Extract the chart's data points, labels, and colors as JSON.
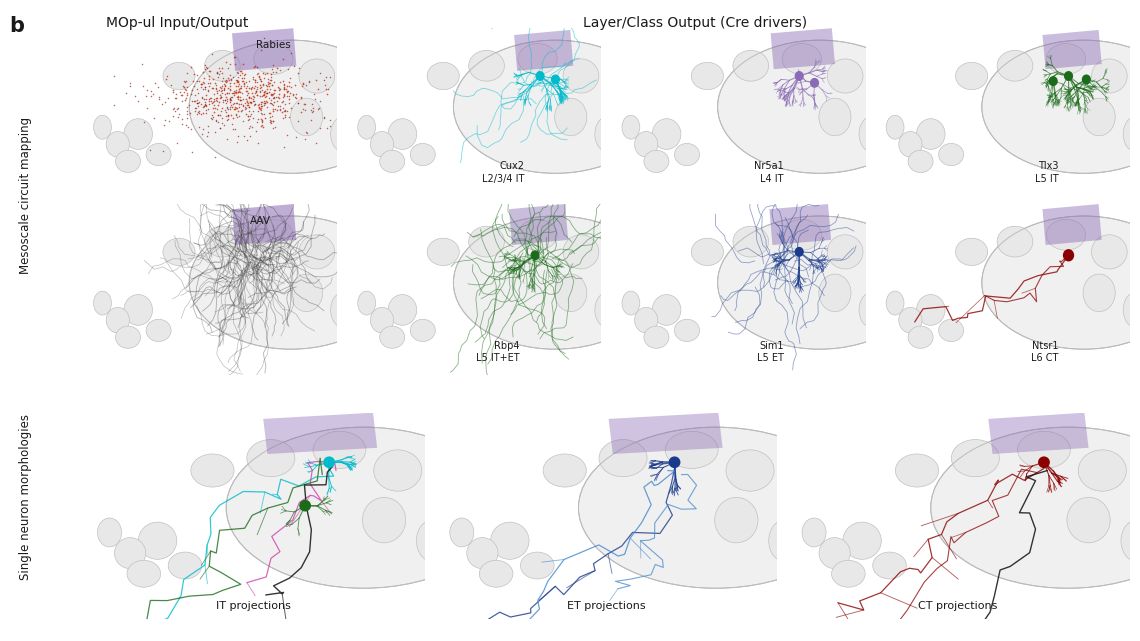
{
  "bg_color": "#ffffff",
  "fig_width": 11.4,
  "fig_height": 6.41,
  "title_b": "b",
  "col_header_left": "MOp-ul Input/Output",
  "col_header_right": "Layer/Class Output (Cre drivers)",
  "row_label_meso": "Mesoscale circuit mapping",
  "row_label_single": "Single neuron morphologies",
  "brain_fill": "#f0f0f0",
  "brain_edge": "#bbbbbb",
  "brain_lobe_fill": "#e8e8e8",
  "brain_lobe_edge": "#c0c0c0",
  "purple_color": "#8B6BB5",
  "rabies_dark": "#8B0000",
  "rabies_light": "#CC3300",
  "aav_color": "#444444",
  "cux2_color": "#00BBCC",
  "nr5a1_color": "#8B6BB5",
  "tlx3_color": "#1A6B1A",
  "rbp4_color": "#1A6B1A",
  "sim1_color": "#1A3A8B",
  "ntsr1_color": "#8B0000",
  "it_colors": [
    "#00BBCC",
    "#CC44AA",
    "#1A6B1A",
    "#111111"
  ],
  "et_colors": [
    "#1A3A8B",
    "#4488CC",
    "#111111"
  ],
  "ct_colors": [
    "#8B0000",
    "#111111"
  ],
  "font_color": "#1a1a1a",
  "label_fs": 7.5,
  "header_fs": 10,
  "b_fs": 15,
  "row_label_fs": 8.5
}
